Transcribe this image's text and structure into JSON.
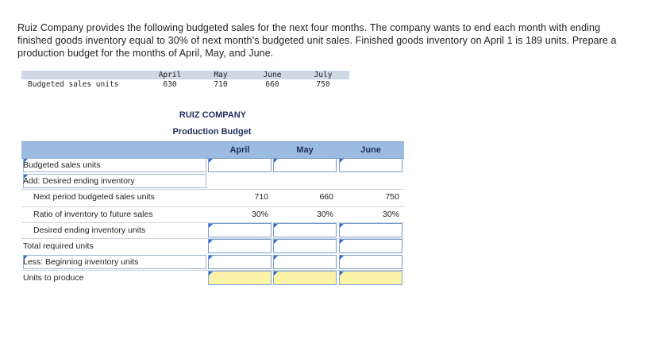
{
  "problem": {
    "text": "Ruiz Company provides the following budgeted sales for the next four months. The company wants to end each month with ending finished goods inventory equal to 30% of next month’s budgeted unit sales. Finished goods inventory on April 1 is 189 units. Prepare a production budget for the months of April, May, and June."
  },
  "sales_table": {
    "label": "Budgeted sales units",
    "months": [
      "April",
      "May",
      "June",
      "July"
    ],
    "values": [
      "630",
      "710",
      "660",
      "750"
    ]
  },
  "budget": {
    "company": "RUIZ COMPANY",
    "title": "Production Budget",
    "columns": [
      "April",
      "May",
      "June"
    ],
    "rows": [
      {
        "label": "Budgeted sales units",
        "values": [
          "",
          "",
          ""
        ]
      },
      {
        "label": "Add: Desired ending inventory",
        "values": [
          "",
          "",
          ""
        ]
      },
      {
        "label": "Next period budgeted sales units",
        "values": [
          "710",
          "660",
          "750"
        ]
      },
      {
        "label": "Ratio of inventory to future sales",
        "values": [
          "30%",
          "30%",
          "30%"
        ]
      },
      {
        "label": "Desired ending inventory units",
        "values": [
          "",
          "",
          ""
        ]
      },
      {
        "label": "Total required units",
        "values": [
          "",
          "",
          ""
        ]
      },
      {
        "label": "Less: Beginning inventory units",
        "values": [
          "",
          "",
          ""
        ]
      },
      {
        "label": "Units to produce",
        "values": [
          "",
          "",
          ""
        ]
      }
    ]
  }
}
